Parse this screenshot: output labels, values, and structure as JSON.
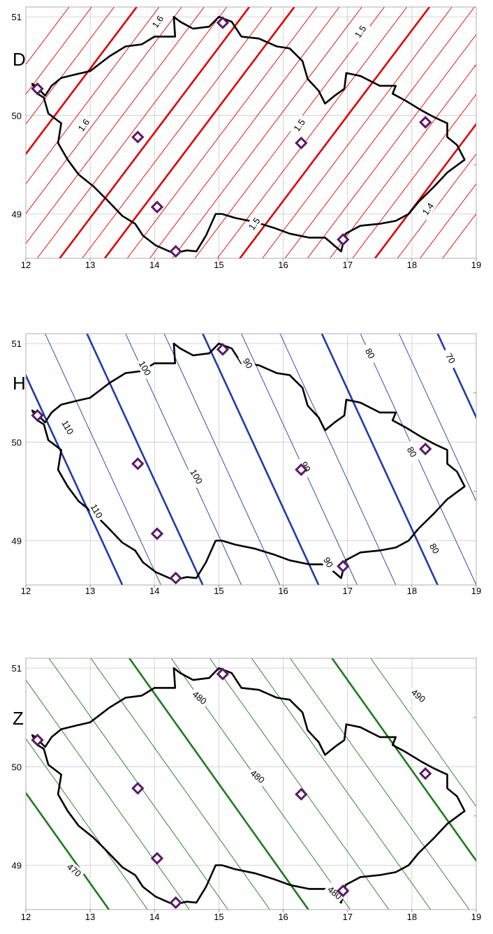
{
  "maps": [
    {
      "key": "D",
      "label": "D",
      "color": "#e00000",
      "contour_direction": "sw-ne",
      "contour_labels": [
        "1.6",
        "1.6",
        "1.5",
        "1.5",
        "1.5",
        "1.4"
      ]
    },
    {
      "key": "H",
      "label": "H",
      "color": "#1f3aa8",
      "contour_direction": "nw-se",
      "contour_labels": [
        "110",
        "100",
        "110",
        "100",
        "90",
        "90",
        "90",
        "80",
        "80",
        "80",
        "70"
      ]
    },
    {
      "key": "Z",
      "label": "Z",
      "color": "#1e7a1e",
      "contour_direction": "nw-se",
      "contour_labels": [
        "480",
        "480",
        "480",
        "470",
        "490"
      ]
    }
  ],
  "axes": {
    "x_ticks": [
      "12",
      "13",
      "14",
      "15",
      "16",
      "17",
      "18",
      "19"
    ],
    "y_ticks": [
      "51",
      "50",
      "49"
    ],
    "x_range": [
      12,
      19
    ],
    "y_range": [
      48.55,
      51.1
    ]
  },
  "stations": [
    {
      "lon": 12.18,
      "lat": 50.27
    },
    {
      "lon": 13.74,
      "lat": 49.78
    },
    {
      "lon": 14.04,
      "lat": 49.07
    },
    {
      "lon": 14.33,
      "lat": 48.62
    },
    {
      "lon": 15.06,
      "lat": 50.94
    },
    {
      "lon": 16.28,
      "lat": 49.72
    },
    {
      "lon": 16.93,
      "lat": 48.74
    },
    {
      "lon": 18.21,
      "lat": 49.93
    }
  ],
  "border_icon": "czech-republic-outline"
}
